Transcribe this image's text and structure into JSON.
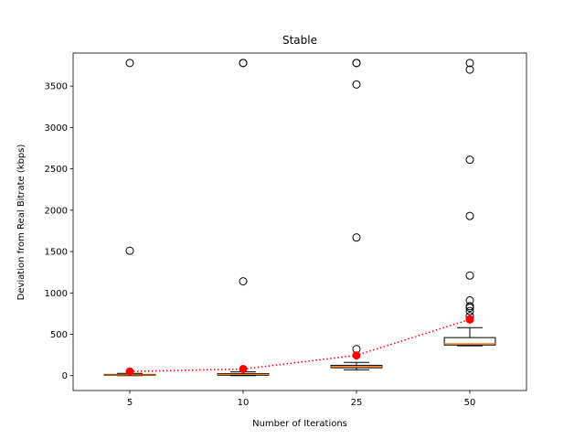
{
  "chart_data": {
    "type": "box",
    "title": "Stable",
    "xlabel": "Number of Iterations",
    "ylabel": "Deviation from Real Bitrate (kbps)",
    "categories": [
      "5",
      "10",
      "25",
      "50"
    ],
    "ylim": [
      -180,
      3900
    ],
    "yticks": [
      0,
      500,
      1000,
      1500,
      2000,
      2500,
      3000,
      3500
    ],
    "grid": false,
    "colors": {
      "box": "#000000",
      "median": "#ff7f0e",
      "mean": "#ff0000",
      "mean_line": "#ff0000"
    },
    "boxes": [
      {
        "category": "5",
        "whisker_low": 0,
        "q1": 3,
        "median": 8,
        "q3": 15,
        "whisker_high": 28,
        "outliers": [
          1510,
          3780
        ]
      },
      {
        "category": "10",
        "whisker_low": 0,
        "q1": 5,
        "median": 15,
        "q3": 25,
        "whisker_high": 45,
        "outliers": [
          1140,
          3780,
          3780
        ]
      },
      {
        "category": "25",
        "whisker_low": 70,
        "q1": 95,
        "median": 110,
        "q3": 125,
        "whisker_high": 160,
        "outliers": [
          320,
          1670,
          3520,
          3780,
          3780
        ]
      },
      {
        "category": "50",
        "whisker_low": 360,
        "q1": 370,
        "median": 385,
        "q3": 460,
        "whisker_high": 580,
        "outliers": [
          680,
          720,
          780,
          820,
          840,
          910,
          1210,
          1930,
          2610,
          3700,
          3780
        ]
      }
    ],
    "means": [
      50,
      80,
      245,
      680
    ],
    "mean_line_style": "dotted"
  }
}
